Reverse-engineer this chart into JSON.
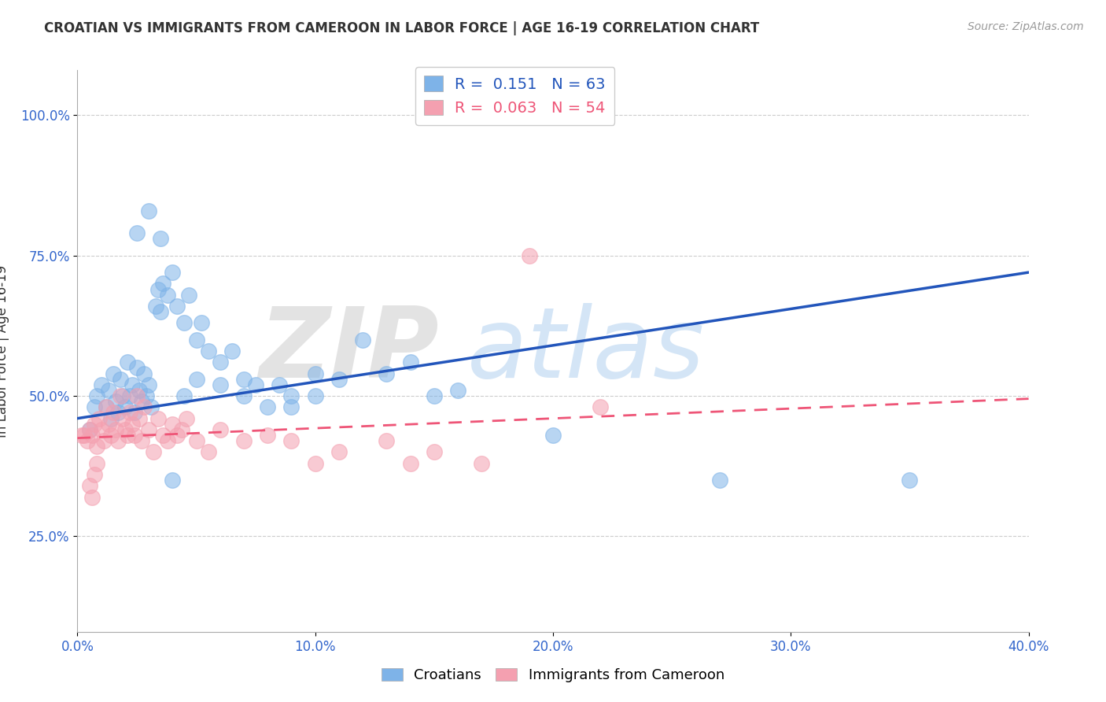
{
  "title": "CROATIAN VS IMMIGRANTS FROM CAMEROON IN LABOR FORCE | AGE 16-19 CORRELATION CHART",
  "source": "Source: ZipAtlas.com",
  "ylabel": "In Labor Force | Age 16-19",
  "xlim": [
    0.0,
    0.4
  ],
  "ylim": [
    0.08,
    1.08
  ],
  "xtick_labels": [
    "0.0%",
    "10.0%",
    "20.0%",
    "30.0%",
    "40.0%"
  ],
  "xtick_vals": [
    0.0,
    0.1,
    0.2,
    0.3,
    0.4
  ],
  "ytick_labels": [
    "25.0%",
    "50.0%",
    "75.0%",
    "100.0%"
  ],
  "ytick_vals": [
    0.25,
    0.5,
    0.75,
    1.0
  ],
  "blue_R": 0.151,
  "blue_N": 63,
  "pink_R": 0.063,
  "pink_N": 54,
  "blue_color": "#7EB3E8",
  "pink_color": "#F4A0B0",
  "blue_line_color": "#2255BB",
  "pink_line_color": "#EE5577",
  "blue_x": [
    0.005,
    0.007,
    0.008,
    0.01,
    0.012,
    0.013,
    0.014,
    0.015,
    0.016,
    0.017,
    0.018,
    0.019,
    0.02,
    0.021,
    0.022,
    0.023,
    0.024,
    0.025,
    0.026,
    0.027,
    0.028,
    0.029,
    0.03,
    0.031,
    0.033,
    0.034,
    0.035,
    0.036,
    0.038,
    0.04,
    0.042,
    0.045,
    0.047,
    0.05,
    0.052,
    0.055,
    0.06,
    0.065,
    0.07,
    0.075,
    0.08,
    0.085,
    0.09,
    0.1,
    0.11,
    0.12,
    0.13,
    0.14,
    0.15,
    0.16,
    0.04,
    0.045,
    0.05,
    0.06,
    0.07,
    0.09,
    0.1,
    0.2,
    0.27,
    0.35,
    0.025,
    0.03,
    0.035
  ],
  "blue_y": [
    0.44,
    0.48,
    0.5,
    0.52,
    0.48,
    0.51,
    0.46,
    0.54,
    0.49,
    0.47,
    0.53,
    0.5,
    0.48,
    0.56,
    0.5,
    0.52,
    0.47,
    0.55,
    0.51,
    0.49,
    0.54,
    0.5,
    0.52,
    0.48,
    0.66,
    0.69,
    0.65,
    0.7,
    0.68,
    0.72,
    0.66,
    0.63,
    0.68,
    0.6,
    0.63,
    0.58,
    0.56,
    0.58,
    0.5,
    0.52,
    0.48,
    0.52,
    0.5,
    0.54,
    0.53,
    0.6,
    0.54,
    0.56,
    0.5,
    0.51,
    0.35,
    0.5,
    0.53,
    0.52,
    0.53,
    0.48,
    0.5,
    0.43,
    0.35,
    0.35,
    0.79,
    0.83,
    0.78
  ],
  "pink_x": [
    0.002,
    0.003,
    0.004,
    0.005,
    0.006,
    0.007,
    0.008,
    0.009,
    0.01,
    0.011,
    0.012,
    0.013,
    0.014,
    0.015,
    0.016,
    0.017,
    0.018,
    0.019,
    0.02,
    0.021,
    0.022,
    0.023,
    0.024,
    0.025,
    0.026,
    0.027,
    0.028,
    0.03,
    0.032,
    0.034,
    0.036,
    0.038,
    0.04,
    0.042,
    0.044,
    0.046,
    0.05,
    0.055,
    0.06,
    0.07,
    0.08,
    0.09,
    0.1,
    0.11,
    0.13,
    0.14,
    0.15,
    0.17,
    0.19,
    0.22,
    0.005,
    0.006,
    0.007,
    0.008
  ],
  "pink_y": [
    0.43,
    0.43,
    0.42,
    0.44,
    0.43,
    0.45,
    0.41,
    0.46,
    0.44,
    0.42,
    0.48,
    0.45,
    0.43,
    0.47,
    0.44,
    0.42,
    0.5,
    0.46,
    0.44,
    0.43,
    0.47,
    0.45,
    0.43,
    0.5,
    0.46,
    0.42,
    0.48,
    0.44,
    0.4,
    0.46,
    0.43,
    0.42,
    0.45,
    0.43,
    0.44,
    0.46,
    0.42,
    0.4,
    0.44,
    0.42,
    0.43,
    0.42,
    0.38,
    0.4,
    0.42,
    0.38,
    0.4,
    0.38,
    0.75,
    0.48,
    0.34,
    0.32,
    0.36,
    0.38
  ],
  "blue_trend_x0": 0.0,
  "blue_trend_y0": 0.46,
  "blue_trend_x1": 0.4,
  "blue_trend_y1": 0.72,
  "pink_trend_x0": 0.0,
  "pink_trend_y0": 0.425,
  "pink_trend_x1": 0.4,
  "pink_trend_y1": 0.495
}
